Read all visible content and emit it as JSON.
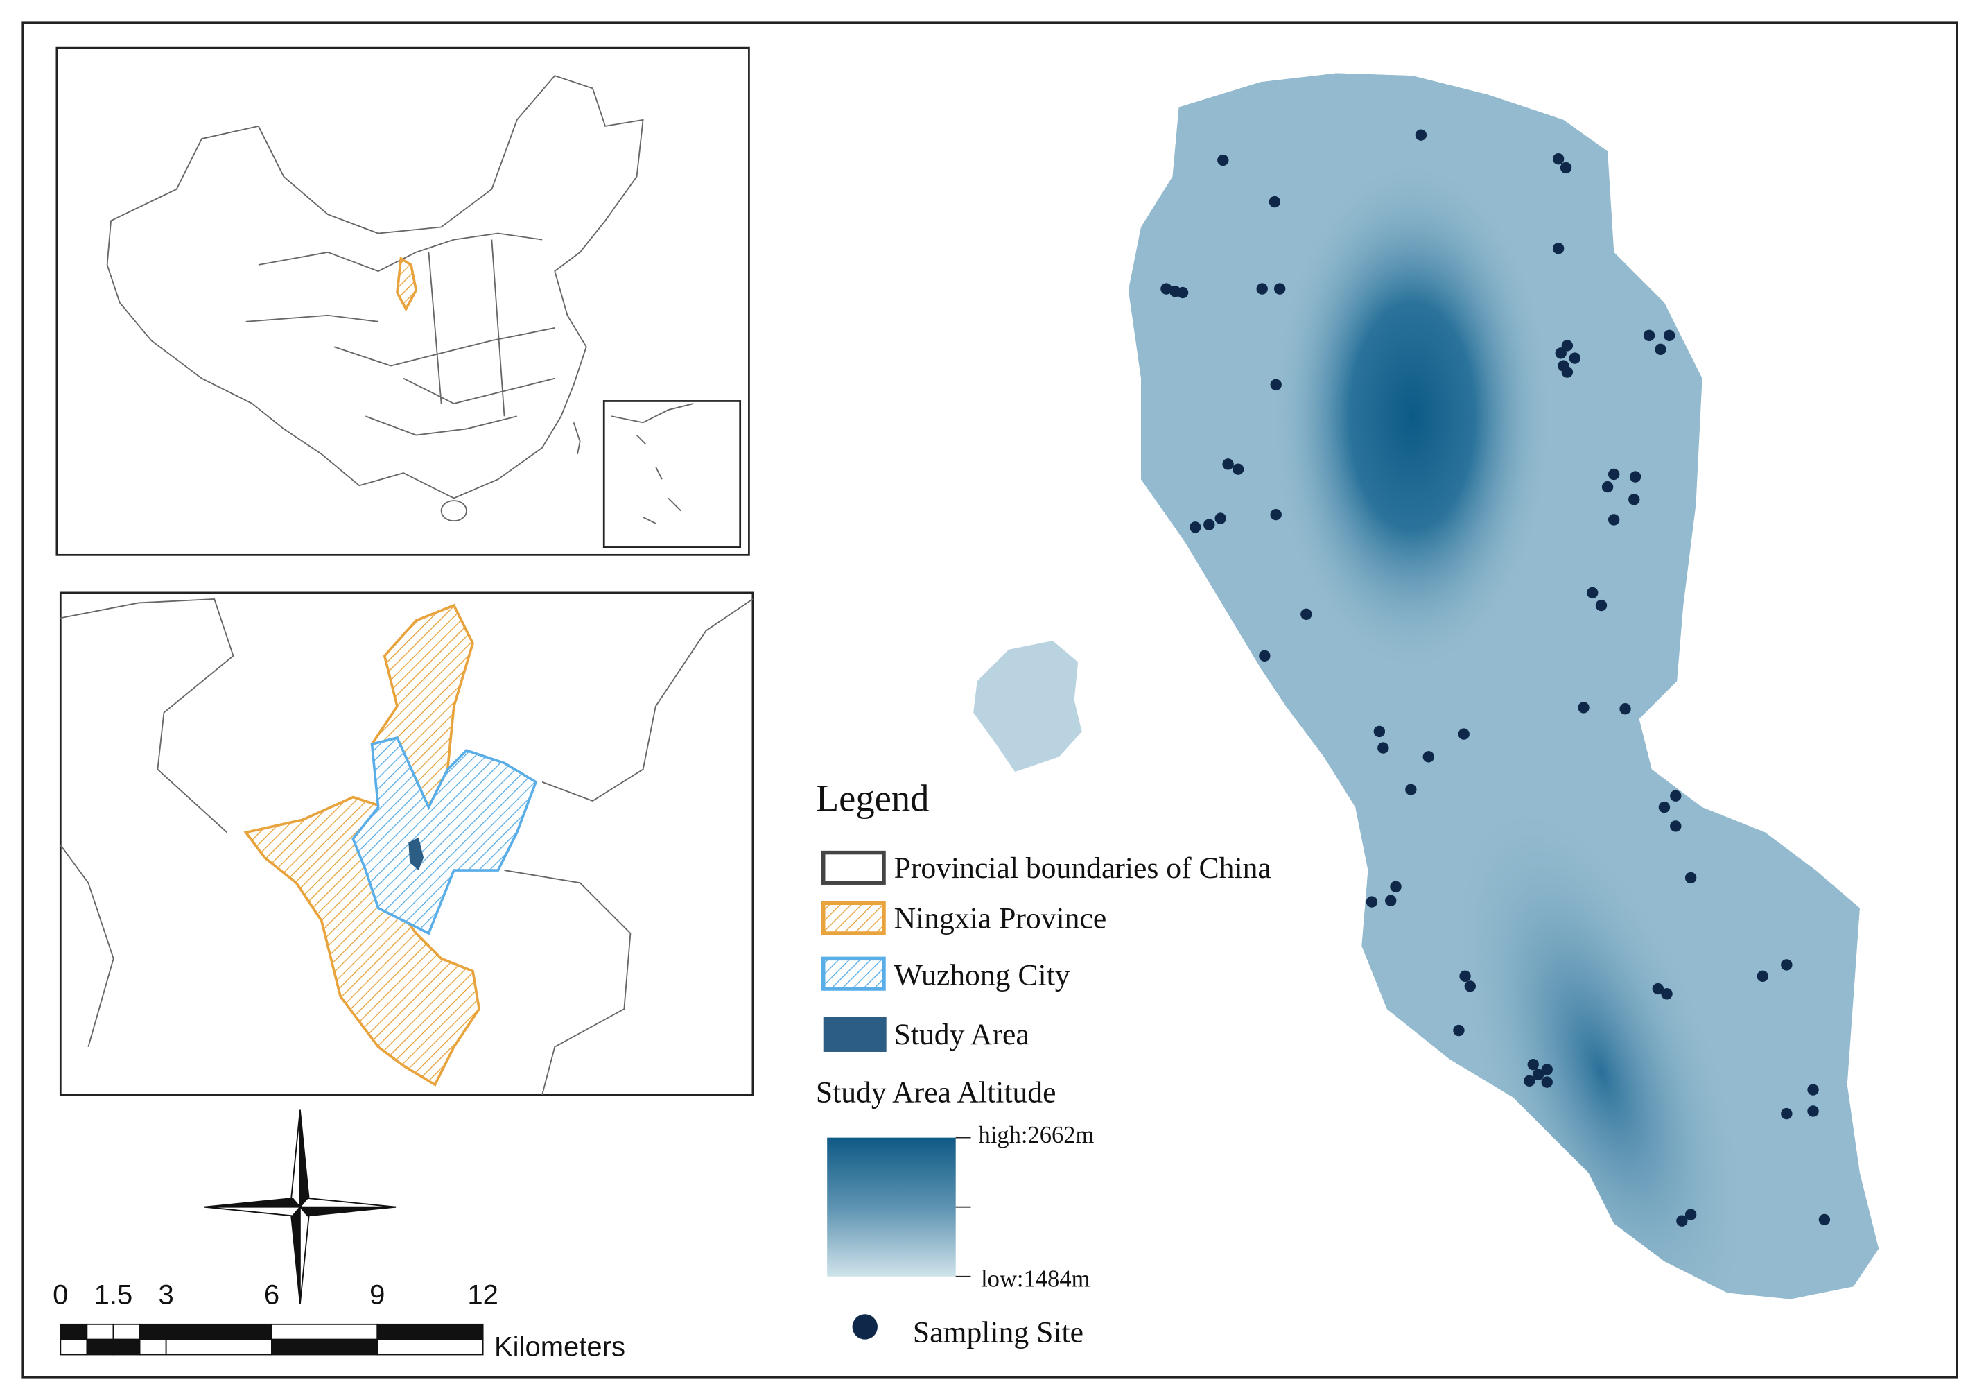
{
  "legend": {
    "title": "Legend",
    "items": [
      {
        "label": "Provincial boundaries of China"
      },
      {
        "label": "Ningxia Province"
      },
      {
        "label": "Wuzhong City"
      },
      {
        "label": "Study Area"
      }
    ]
  },
  "altitude": {
    "title": "Study Area Altitude",
    "high": "high:2662m",
    "low": "low:1484m"
  },
  "sampling": {
    "label": "Sampling Site"
  },
  "scale_bar": {
    "ticks": [
      0,
      1.5,
      3,
      6,
      9,
      12
    ],
    "unit": "Kilometers"
  }
}
